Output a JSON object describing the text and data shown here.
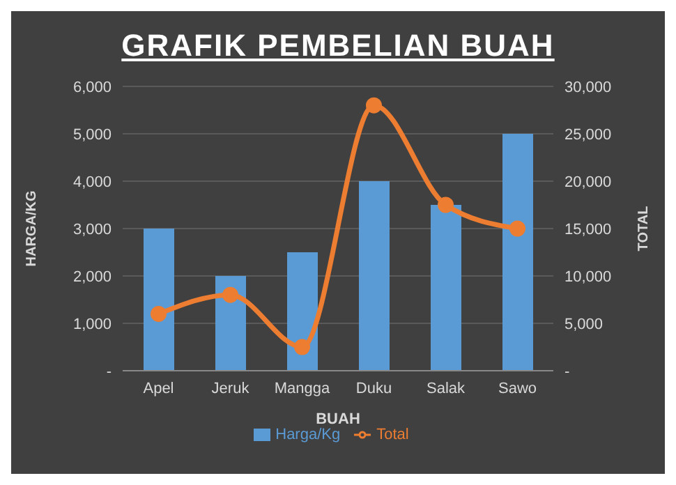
{
  "chart_data": {
    "type": "bar",
    "title": "GRAFIK PEMBELIAN BUAH",
    "xlabel": "BUAH",
    "ylabel": "HARGA/KG",
    "y2label": "TOTAL",
    "categories": [
      "Apel",
      "Jeruk",
      "Mangga",
      "Duku",
      "Salak",
      "Sawo"
    ],
    "series": [
      {
        "name": "Harga/Kg",
        "color": "#5b9bd5",
        "values": [
          3000,
          2000,
          2500,
          4000,
          3500,
          5000
        ]
      },
      {
        "name": "Total",
        "type": "line",
        "axis": "y2",
        "color": "#ed7d31",
        "values": [
          6000,
          8000,
          2500,
          28000,
          17500,
          15000
        ]
      }
    ],
    "ylim": [
      0,
      6000
    ],
    "yticks": [
      {
        "value": 0,
        "label": "-"
      },
      {
        "value": 1000,
        "label": "1,000"
      },
      {
        "value": 2000,
        "label": "2,000"
      },
      {
        "value": 3000,
        "label": "3,000"
      },
      {
        "value": 4000,
        "label": "4,000"
      },
      {
        "value": 5000,
        "label": "5,000"
      },
      {
        "value": 6000,
        "label": "6,000"
      }
    ],
    "y2lim": [
      0,
      30000
    ],
    "y2ticks": [
      {
        "value": 0,
        "label": "-"
      },
      {
        "value": 5000,
        "label": "5,000"
      },
      {
        "value": 10000,
        "label": "10,000"
      },
      {
        "value": 15000,
        "label": "15,000"
      },
      {
        "value": 20000,
        "label": "20,000"
      },
      {
        "value": 25000,
        "label": "25,000"
      },
      {
        "value": 30000,
        "label": "30,000"
      }
    ],
    "grid": "y",
    "legend": "bottom",
    "marker": "circle"
  }
}
